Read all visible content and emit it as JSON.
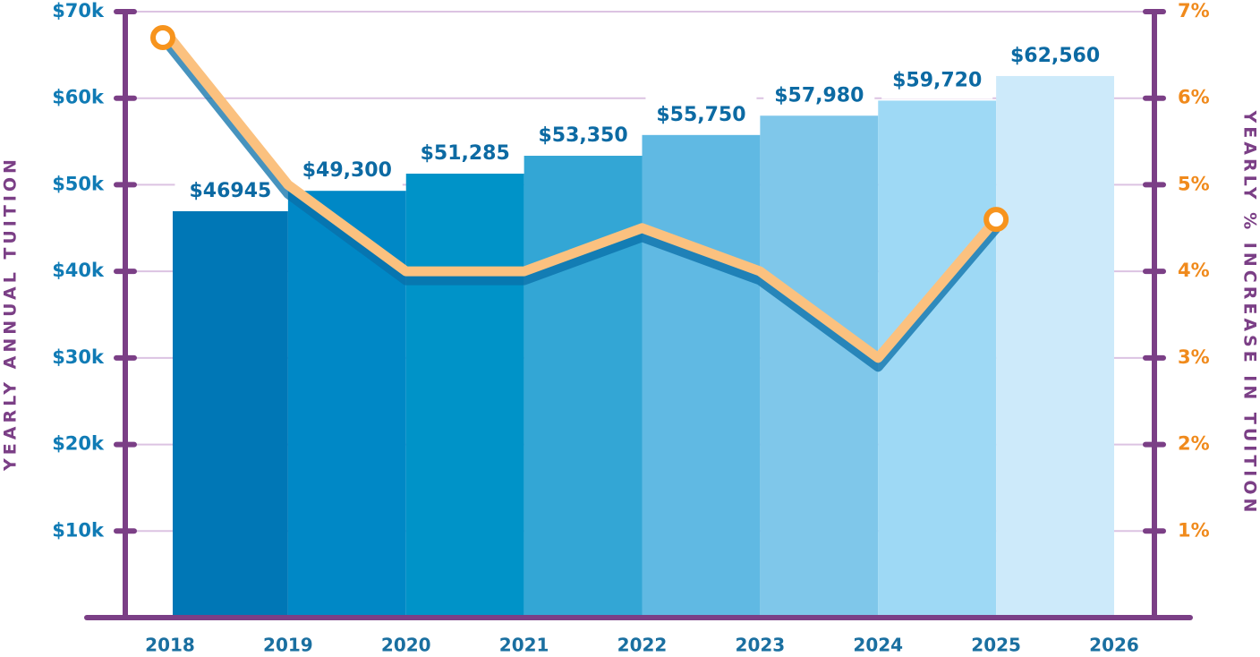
{
  "chart_data": {
    "type": "bar",
    "categories": [
      "2018",
      "2019",
      "2020",
      "2021",
      "2022",
      "2023",
      "2024",
      "2025",
      "2026"
    ],
    "series": [
      {
        "type": "bar",
        "colors": [
          "#0077b6",
          "#0088c6",
          "#0093c8",
          "#33a6d5",
          "#60b9e3",
          "#7fc7ea",
          "#9ed9f5",
          "#cdeafa"
        ],
        "values": [
          46945,
          49300,
          51285,
          53350,
          55750,
          57980,
          59720,
          62560,
          null
        ],
        "value_labels": [
          "$46945",
          "$49,300",
          "$51,285",
          "$53,350",
          "$55,750",
          "$57,980",
          "$59,720",
          "$62,560",
          null
        ]
      },
      {
        "type": "line",
        "axis": "y2",
        "color": "#fbc17f",
        "marker_color": "#f7941d",
        "values": [
          6.7,
          5.0,
          4.0,
          4.0,
          4.5,
          4.0,
          3.0,
          4.6,
          null
        ]
      }
    ],
    "ylabel": "YEARLY ANNUAL TUITION",
    "y2label": "YEARLY % INCREASE IN TUITION",
    "ylim": [
      0,
      70000
    ],
    "yticks": [
      {
        "value": 10000,
        "label": "$10k"
      },
      {
        "value": 20000,
        "label": "$20k"
      },
      {
        "value": 30000,
        "label": "$30k"
      },
      {
        "value": 40000,
        "label": "$40k"
      },
      {
        "value": 50000,
        "label": "$50k"
      },
      {
        "value": 60000,
        "label": "$60k"
      },
      {
        "value": 70000,
        "label": "$70k"
      }
    ],
    "y2lim": [
      0,
      7
    ],
    "y2ticks": [
      {
        "value": 1,
        "label": "1%"
      },
      {
        "value": 2,
        "label": "2%"
      },
      {
        "value": 3,
        "label": "3%"
      },
      {
        "value": 4,
        "label": "4%"
      },
      {
        "value": 5,
        "label": "5%"
      },
      {
        "value": 6,
        "label": "6%"
      },
      {
        "value": 7,
        "label": "7%"
      }
    ],
    "grid": true
  }
}
